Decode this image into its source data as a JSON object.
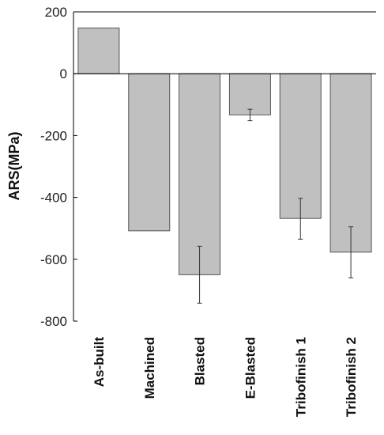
{
  "chart_data": {
    "type": "bar",
    "title": "",
    "xlabel": "",
    "ylabel": "ARS(MPa)",
    "ylim": [
      -800,
      200
    ],
    "yticks": [
      200,
      0,
      -200,
      -400,
      -600,
      -800
    ],
    "grid": false,
    "categories": [
      "As-built",
      "Machined",
      "Blasted",
      "E-Blasted",
      "Tribofinish 1",
      "Tribofinish 2"
    ],
    "values": [
      148,
      -508,
      -650,
      -133,
      -468,
      -577
    ],
    "error_low": [
      null,
      null,
      -742,
      -152,
      -535,
      -660
    ],
    "error_high": [
      null,
      null,
      -558,
      -115,
      -403,
      -495
    ],
    "colors": {
      "bar_fill": "#c0c0c0",
      "bar_stroke": "#555555",
      "axis": "#000000",
      "error": "#333333"
    }
  }
}
